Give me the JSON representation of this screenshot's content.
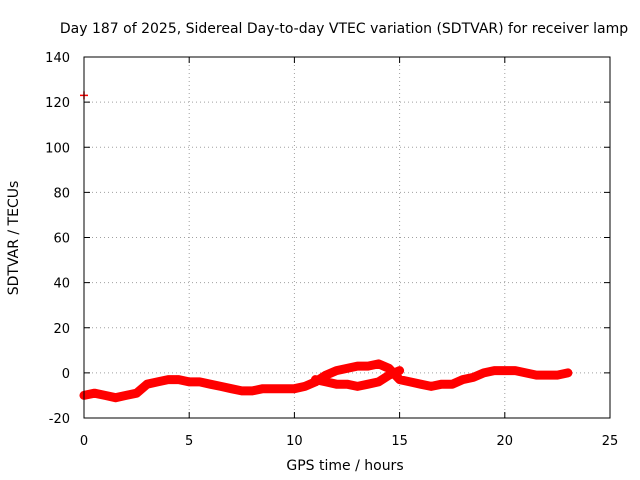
{
  "chart_data": {
    "type": "scatter",
    "title": "Day 187 of 2025, Sidereal Day-to-day VTEC variation (SDTVAR) for receiver lamp",
    "xlabel": "GPS time / hours",
    "ylabel": "SDTVAR / TECUs",
    "xlim": [
      0,
      25
    ],
    "ylim": [
      -20,
      140
    ],
    "xticks": [
      "0",
      "5",
      "10",
      "15",
      "20",
      "25"
    ],
    "yticks": [
      "-20",
      "0",
      "20",
      "40",
      "60",
      "80",
      "100",
      "120",
      "140"
    ],
    "grid": true,
    "series": [
      {
        "name": "SDTVAR main track",
        "color": "#ff0000",
        "x": [
          0.0,
          0.5,
          1.0,
          1.5,
          2.0,
          2.5,
          3.0,
          3.5,
          4.0,
          4.5,
          5.0,
          5.5,
          6.0,
          6.5,
          7.0,
          7.5,
          8.0,
          8.5,
          9.0,
          9.5,
          10.0,
          10.5,
          11.0,
          11.5,
          12.0,
          12.5,
          13.0,
          13.5,
          14.0,
          14.5,
          15.0,
          15.5,
          16.0,
          16.5,
          17.0,
          17.5,
          18.0,
          18.5,
          19.0,
          19.5,
          20.0,
          20.5,
          21.0,
          21.5,
          22.0,
          22.5,
          23.0
        ],
        "y": [
          -10,
          -9,
          -10,
          -11,
          -10,
          -9,
          -5,
          -4,
          -3,
          -3,
          -4,
          -4,
          -5,
          -6,
          -7,
          -8,
          -8,
          -7,
          -7,
          -7,
          -7,
          -6,
          -4,
          -1,
          1,
          2,
          3,
          3,
          4,
          2,
          -3,
          -4,
          -5,
          -6,
          -5,
          -5,
          -3,
          -2,
          0,
          1,
          1,
          1,
          0,
          -1,
          -1,
          -1,
          0
        ]
      },
      {
        "name": "SDTVAR secondary branch",
        "color": "#ff0000",
        "x": [
          11.0,
          11.5,
          12.0,
          12.5,
          13.0,
          13.5,
          14.0,
          14.5,
          15.0
        ],
        "y": [
          -3,
          -4,
          -5,
          -5,
          -6,
          -5,
          -4,
          -1,
          1
        ]
      },
      {
        "name": "outliers",
        "color": "#ff0000",
        "x": [
          0.0
        ],
        "y": [
          123
        ]
      }
    ]
  }
}
